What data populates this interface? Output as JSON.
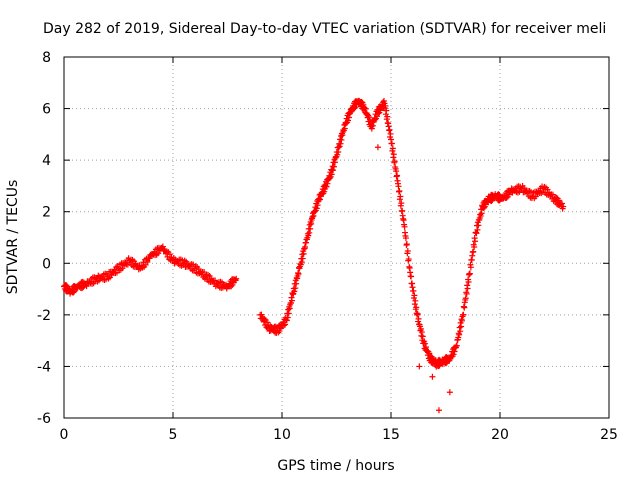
{
  "chart_data": {
    "type": "scatter",
    "title": "Day 282 of 2019, Sidereal Day-to-day VTEC variation (SDTVAR) for receiver meli",
    "xlabel": "GPS time / hours",
    "ylabel": "SDTVAR / TECUs",
    "xlim": [
      0,
      25
    ],
    "ylim": [
      -6,
      8
    ],
    "xticks": [
      0,
      5,
      10,
      15,
      20,
      25
    ],
    "yticks": [
      -6,
      -4,
      -2,
      0,
      2,
      4,
      6,
      8
    ],
    "grid": true,
    "marker": "+",
    "color": "#ff0000",
    "series": [
      {
        "name": "SDTVAR",
        "x": [
          0.0,
          0.3,
          0.6,
          1.0,
          1.5,
          2.0,
          2.5,
          3.0,
          3.5,
          4.0,
          4.5,
          5.0,
          5.5,
          6.0,
          6.5,
          7.0,
          7.5,
          7.9,
          9.0,
          9.4,
          9.8,
          10.2,
          10.5,
          10.8,
          11.1,
          11.4,
          11.7,
          12.0,
          12.3,
          12.6,
          12.9,
          13.2,
          13.5,
          13.8,
          14.1,
          14.4,
          14.7,
          15.0,
          15.3,
          15.6,
          15.9,
          16.2,
          16.5,
          16.8,
          17.1,
          17.4,
          17.7,
          18.0,
          18.3,
          18.6,
          18.9,
          19.2,
          19.5,
          19.8,
          20.1,
          20.5,
          21.0,
          21.5,
          22.0,
          22.5,
          22.9
        ],
        "y": [
          -0.9,
          -1.1,
          -0.9,
          -0.8,
          -0.6,
          -0.5,
          -0.2,
          0.1,
          -0.2,
          0.3,
          0.6,
          0.1,
          0.0,
          -0.2,
          -0.5,
          -0.8,
          -0.9,
          -0.6,
          -2.0,
          -2.5,
          -2.6,
          -2.2,
          -1.2,
          -0.2,
          0.8,
          1.8,
          2.5,
          3.0,
          3.6,
          4.5,
          5.4,
          6.0,
          6.3,
          6.0,
          5.3,
          5.9,
          6.2,
          4.8,
          3.2,
          1.5,
          -0.5,
          -2.0,
          -3.1,
          -3.7,
          -3.9,
          -3.8,
          -3.7,
          -3.2,
          -2.0,
          -0.4,
          1.2,
          2.2,
          2.5,
          2.6,
          2.5,
          2.8,
          2.9,
          2.6,
          2.9,
          2.5,
          2.2
        ],
        "extra_points": [
          {
            "x": 14.4,
            "y": 4.5
          },
          {
            "x": 17.2,
            "y": -5.7
          },
          {
            "x": 17.7,
            "y": -5.0
          },
          {
            "x": 16.3,
            "y": -4.0
          },
          {
            "x": 16.9,
            "y": -4.4
          }
        ]
      }
    ]
  }
}
